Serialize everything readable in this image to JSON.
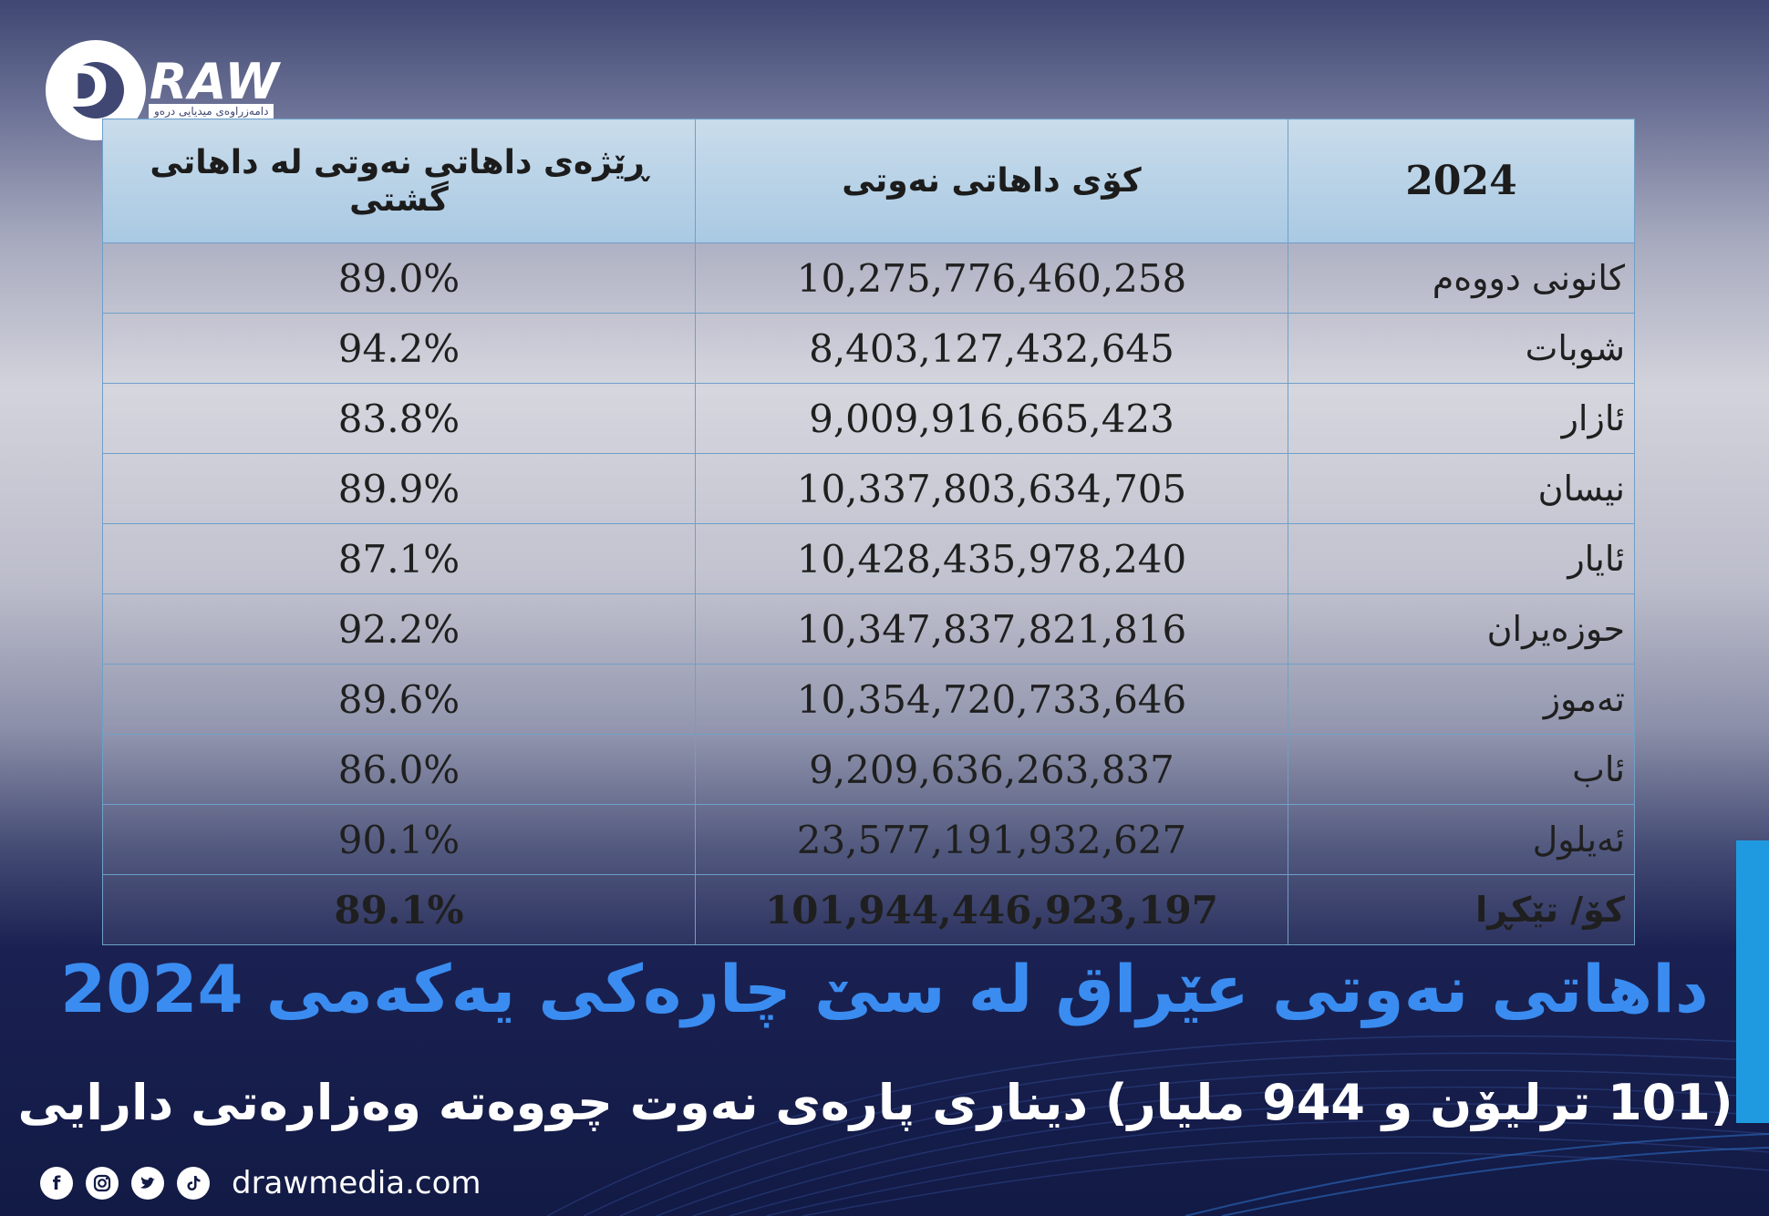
{
  "brand": {
    "logo_text": "RAW",
    "logo_letter": "D",
    "logo_subtitle": "دامەزراوەی میدیایی درەو"
  },
  "table": {
    "headers": {
      "ratio": "ڕێژەی داهاتی نەوتی لە داهاتی گشتی",
      "total_revenue": "کۆی داهاتی نەوتی",
      "year": "2024"
    },
    "rows": [
      {
        "month": "کانونی دووەم",
        "revenue": "10,275,776,460,258",
        "ratio": "89.0%"
      },
      {
        "month": "شوبات",
        "revenue": "8,403,127,432,645",
        "ratio": "94.2%"
      },
      {
        "month": "ئازار",
        "revenue": "9,009,916,665,423",
        "ratio": "83.8%"
      },
      {
        "month": "نیسان",
        "revenue": "10,337,803,634,705",
        "ratio": "89.9%"
      },
      {
        "month": "ئایار",
        "revenue": "10,428,435,978,240",
        "ratio": "87.1%"
      },
      {
        "month": "حوزەیران",
        "revenue": "10,347,837,821,816",
        "ratio": "92.2%"
      },
      {
        "month": "تەموز",
        "revenue": "10,354,720,733,646",
        "ratio": "89.6%"
      },
      {
        "month": "ئاب",
        "revenue": "9,209,636,263,837",
        "ratio": "86.0%"
      },
      {
        "month": "ئەیلول",
        "revenue": "23,577,191,932,627",
        "ratio": "90.1%"
      }
    ],
    "total": {
      "month": "کۆ/ تێکڕا",
      "revenue": "101,944,446,923,197",
      "ratio": "89.1%"
    }
  },
  "headline": "داهاتی نەوتی عێراق لە سێ چارەکی یەکەمی 2024",
  "subheadline": "(101 ترلیۆن و 944 ملیار) دیناری پارەی نەوت چووەتە وەزارەتی دارایی",
  "footer": {
    "website": "drawmedia.com",
    "icons": [
      "facebook-icon",
      "instagram-icon",
      "twitter-icon",
      "tiktok-icon"
    ]
  },
  "colors": {
    "headline": "#3a8cf0",
    "accent_bar": "#1f9ae0",
    "table_header": "#a9c9e3"
  }
}
